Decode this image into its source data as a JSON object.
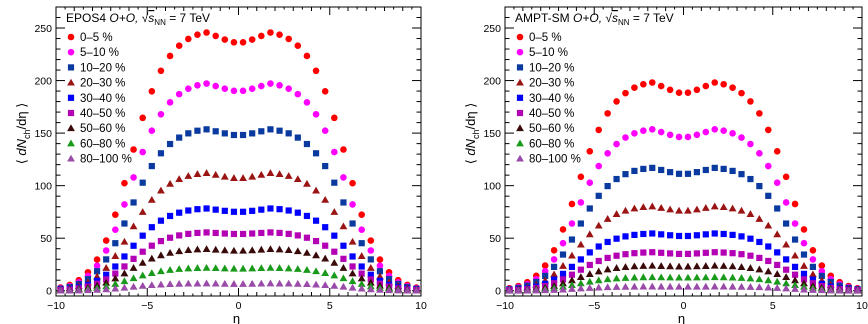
{
  "chart_data": [
    {
      "type": "scatter",
      "title_prefix": "EPOS4",
      "title_system": "O+O,",
      "title_energy_sym": "s",
      "title_energy_sub": "NN",
      "title_energy_value": "= 7 TeV",
      "xlabel": "η",
      "ylabel_open": "⟨",
      "ylabel_main": "dN",
      "ylabel_sub": "ch",
      "ylabel_rest": "/dη",
      "ylabel_close": "⟩",
      "xlim": [
        -10,
        10
      ],
      "ylim": [
        -5,
        270
      ],
      "xticks": [
        -10,
        -5,
        0,
        5,
        10
      ],
      "yticks": [
        0,
        50,
        100,
        150,
        200,
        250
      ],
      "x_tick_labels": [
        "−10",
        "−5",
        "0",
        "5",
        "10"
      ],
      "y_tick_labels": [
        "0",
        "50",
        "100",
        "150",
        "200",
        "250"
      ],
      "x_values": "eta from -9.75 to 9.75 in steps of 0.5",
      "series": [
        {
          "name": "0–5 %",
          "color": "#ff0000",
          "marker": "circle",
          "peak": 248,
          "center": 236,
          "edge_low": 1.2
        },
        {
          "name": "5–10 %",
          "color": "#ff00ff",
          "marker": "circle",
          "peak": 199,
          "center": 190,
          "edge_low": 1.0
        },
        {
          "name": "10–20 %",
          "color": "#0a3aa0",
          "marker": "square",
          "peak": 155,
          "center": 148,
          "edge_low": 0.9
        },
        {
          "name": "20–30 %",
          "color": "#9a1414",
          "marker": "triangle",
          "peak": 113,
          "center": 107,
          "edge_low": 0.8
        },
        {
          "name": "30–40 %",
          "color": "#0000ff",
          "marker": "square",
          "peak": 79,
          "center": 75,
          "edge_low": 0.7
        },
        {
          "name": "40–50 %",
          "color": "#b400b4",
          "marker": "square",
          "peak": 56,
          "center": 54,
          "edge_low": 0.6
        },
        {
          "name": "50–60 %",
          "color": "#3a0a0a",
          "marker": "triangle",
          "peak": 40,
          "center": 38,
          "edge_low": 0.5
        },
        {
          "name": "60–80 %",
          "color": "#1a9a1a",
          "marker": "triangle",
          "peak": 22,
          "center": 21,
          "edge_low": 0.4
        },
        {
          "name": "80–100 %",
          "color": "#9a4aa8",
          "marker": "triangle",
          "peak": 7,
          "center": 6.5,
          "edge_low": 0.2
        }
      ],
      "legend_position": "top-left",
      "grid": false
    },
    {
      "type": "scatter",
      "title_prefix": "AMPT-SM",
      "title_system": "O+O,",
      "title_energy_sym": "s",
      "title_energy_sub": "NN",
      "title_energy_value": "= 7 TeV",
      "xlabel": "η",
      "ylabel_open": "⟨",
      "ylabel_main": "dN",
      "ylabel_sub": "ch",
      "ylabel_rest": "/dη",
      "ylabel_close": "⟩",
      "xlim": [
        -10,
        10
      ],
      "ylim": [
        -5,
        270
      ],
      "xticks": [
        -10,
        -5,
        0,
        5,
        10
      ],
      "yticks": [
        0,
        50,
        100,
        150,
        200,
        250
      ],
      "x_tick_labels": [
        "−10",
        "−5",
        "0",
        "5",
        "10"
      ],
      "y_tick_labels": [
        "0",
        "50",
        "100",
        "150",
        "200",
        "250"
      ],
      "x_values": "eta from -9.75 to 9.75 in steps of 0.5",
      "series": [
        {
          "name": "0–5 %",
          "color": "#ff0000",
          "marker": "circle",
          "peak": 200,
          "center": 188,
          "edge_low": 1.0
        },
        {
          "name": "5–10 %",
          "color": "#ff00ff",
          "marker": "circle",
          "peak": 155,
          "center": 146,
          "edge_low": 0.9
        },
        {
          "name": "10–20 %",
          "color": "#0a3aa0",
          "marker": "square",
          "peak": 118,
          "center": 111,
          "edge_low": 0.8
        },
        {
          "name": "20–30 %",
          "color": "#9a1414",
          "marker": "triangle",
          "peak": 81,
          "center": 76,
          "edge_low": 0.7
        },
        {
          "name": "30–40 %",
          "color": "#0000ff",
          "marker": "square",
          "peak": 55,
          "center": 52,
          "edge_low": 0.6
        },
        {
          "name": "40–50 %",
          "color": "#b400b4",
          "marker": "square",
          "peak": 37,
          "center": 35,
          "edge_low": 0.5
        },
        {
          "name": "50–60 %",
          "color": "#3a0a0a",
          "marker": "triangle",
          "peak": 24,
          "center": 23,
          "edge_low": 0.4
        },
        {
          "name": "60–80 %",
          "color": "#1a9a1a",
          "marker": "triangle",
          "peak": 13,
          "center": 12.5,
          "edge_low": 0.3
        },
        {
          "name": "80–100 %",
          "color": "#9a4aa8",
          "marker": "triangle",
          "peak": 4,
          "center": 3.8,
          "edge_low": 0.1
        }
      ],
      "legend_position": "top-left",
      "grid": false
    }
  ]
}
